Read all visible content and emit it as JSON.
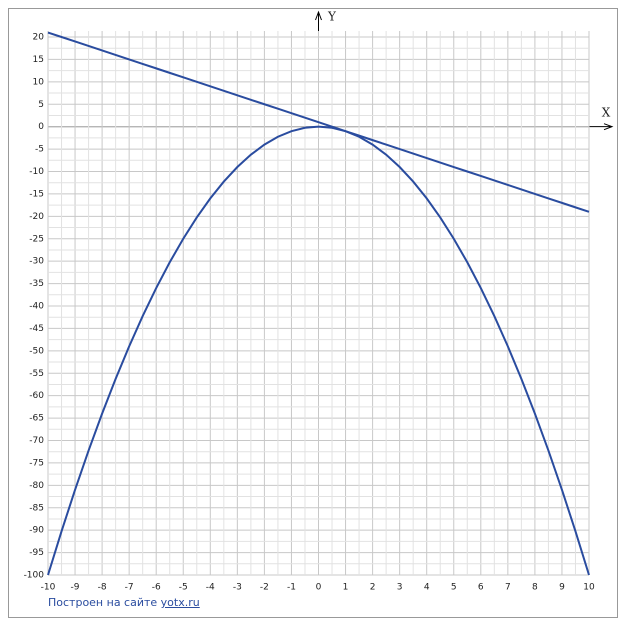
{
  "chart_data": {
    "type": "line",
    "x_label": "X",
    "y_label": "Y",
    "x": [
      -10,
      -9.5,
      -9,
      -8.5,
      -8,
      -7.5,
      -7,
      -6.5,
      -6,
      -5.5,
      -5,
      -4.5,
      -4,
      -3.5,
      -3,
      -2.5,
      -2,
      -1.5,
      -1,
      -0.5,
      0,
      0.5,
      1,
      1.5,
      2,
      2.5,
      3,
      3.5,
      4,
      4.5,
      5,
      5.5,
      6,
      6.5,
      7,
      7.5,
      8,
      8.5,
      9,
      9.5,
      10
    ],
    "series": [
      {
        "color": "#2a4c9f",
        "values": [
          -100,
          -90.25,
          -81,
          -72.25,
          -64,
          -56.25,
          -49,
          -42.25,
          -36,
          -30.25,
          -25,
          -20.25,
          -16,
          -12.25,
          -9,
          -6.25,
          -4,
          -2.25,
          -1,
          -0.25,
          0,
          -0.25,
          -1,
          -2.25,
          -4,
          -6.25,
          -9,
          -12.25,
          -16,
          -20.25,
          -25,
          -30.25,
          -36,
          -42.25,
          -49,
          -56.25,
          -64,
          -72.25,
          -81,
          -90.25,
          -100
        ]
      },
      {
        "color": "#2a4c9f",
        "values": [
          21,
          20,
          19,
          18,
          17,
          16,
          15,
          14,
          13,
          12,
          11,
          10,
          9,
          8,
          7,
          6,
          5,
          4,
          3,
          2,
          1,
          0,
          -1,
          -2,
          -3,
          -4,
          -5,
          -6,
          -7,
          -8,
          -9,
          -10,
          -11,
          -12,
          -13,
          -14,
          -15,
          -16,
          -17,
          -18,
          -19
        ]
      }
    ],
    "xlim": [
      -10,
      10
    ],
    "ylim": [
      -100,
      20
    ],
    "xticks": [
      -10,
      -9,
      -8,
      -7,
      -6,
      -5,
      -4,
      -3,
      -2,
      -1,
      0,
      1,
      2,
      3,
      4,
      5,
      6,
      7,
      8,
      9,
      10
    ],
    "yticks": [
      -100,
      -95,
      -90,
      -85,
      -80,
      -75,
      -70,
      -65,
      -60,
      -55,
      -50,
      -45,
      -40,
      -35,
      -30,
      -25,
      -20,
      -15,
      -10,
      -5,
      0,
      5,
      10,
      15,
      20
    ],
    "grid": true
  },
  "footer": {
    "text": "Построен на сайте",
    "link": "yotx.ru"
  }
}
